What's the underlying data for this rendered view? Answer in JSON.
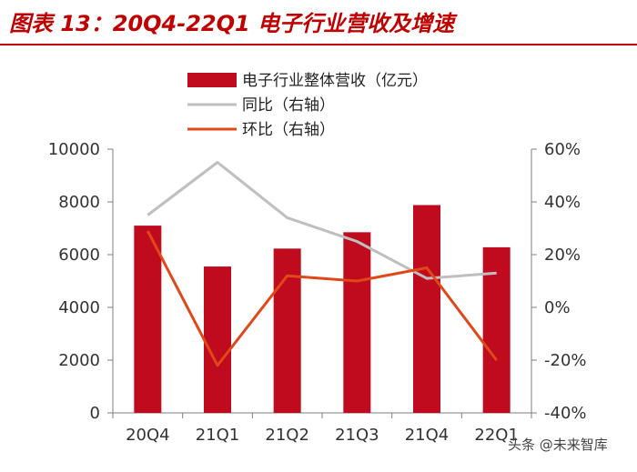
{
  "title": "图表 13：20Q4-22Q1 电子行业营收及增速",
  "watermark": "头条 @未来智库",
  "colors": {
    "bar": "#c00a1e",
    "yoy": "#bfbfbf",
    "qoq": "#e0481a",
    "title": "#c00000"
  },
  "chart_data": {
    "type": "bar",
    "categories": [
      "20Q4",
      "21Q1",
      "21Q2",
      "21Q3",
      "21Q4",
      "22Q1"
    ],
    "series": [
      {
        "name": "电子行业整体营收（亿元）",
        "type": "bar",
        "axis": "left",
        "values": [
          7100,
          5550,
          6230,
          6850,
          7880,
          6280
        ]
      },
      {
        "name": "同比（右轴）",
        "type": "line",
        "axis": "right",
        "values": [
          35,
          55,
          34,
          25,
          11,
          13
        ]
      },
      {
        "name": "环比（右轴）",
        "type": "line",
        "axis": "right",
        "values": [
          29,
          -22,
          12,
          10,
          15,
          -20
        ]
      }
    ],
    "left_axis": {
      "ylim": [
        0,
        10000
      ],
      "ticks": [
        "0",
        "2000",
        "4000",
        "6000",
        "8000",
        "10000"
      ]
    },
    "right_axis": {
      "ylim": [
        -40,
        60
      ],
      "unit": "%",
      "ticks": [
        "-40%",
        "-20%",
        "0%",
        "20%",
        "40%",
        "60%"
      ]
    },
    "legend": {
      "position": "top"
    },
    "grid": false
  }
}
